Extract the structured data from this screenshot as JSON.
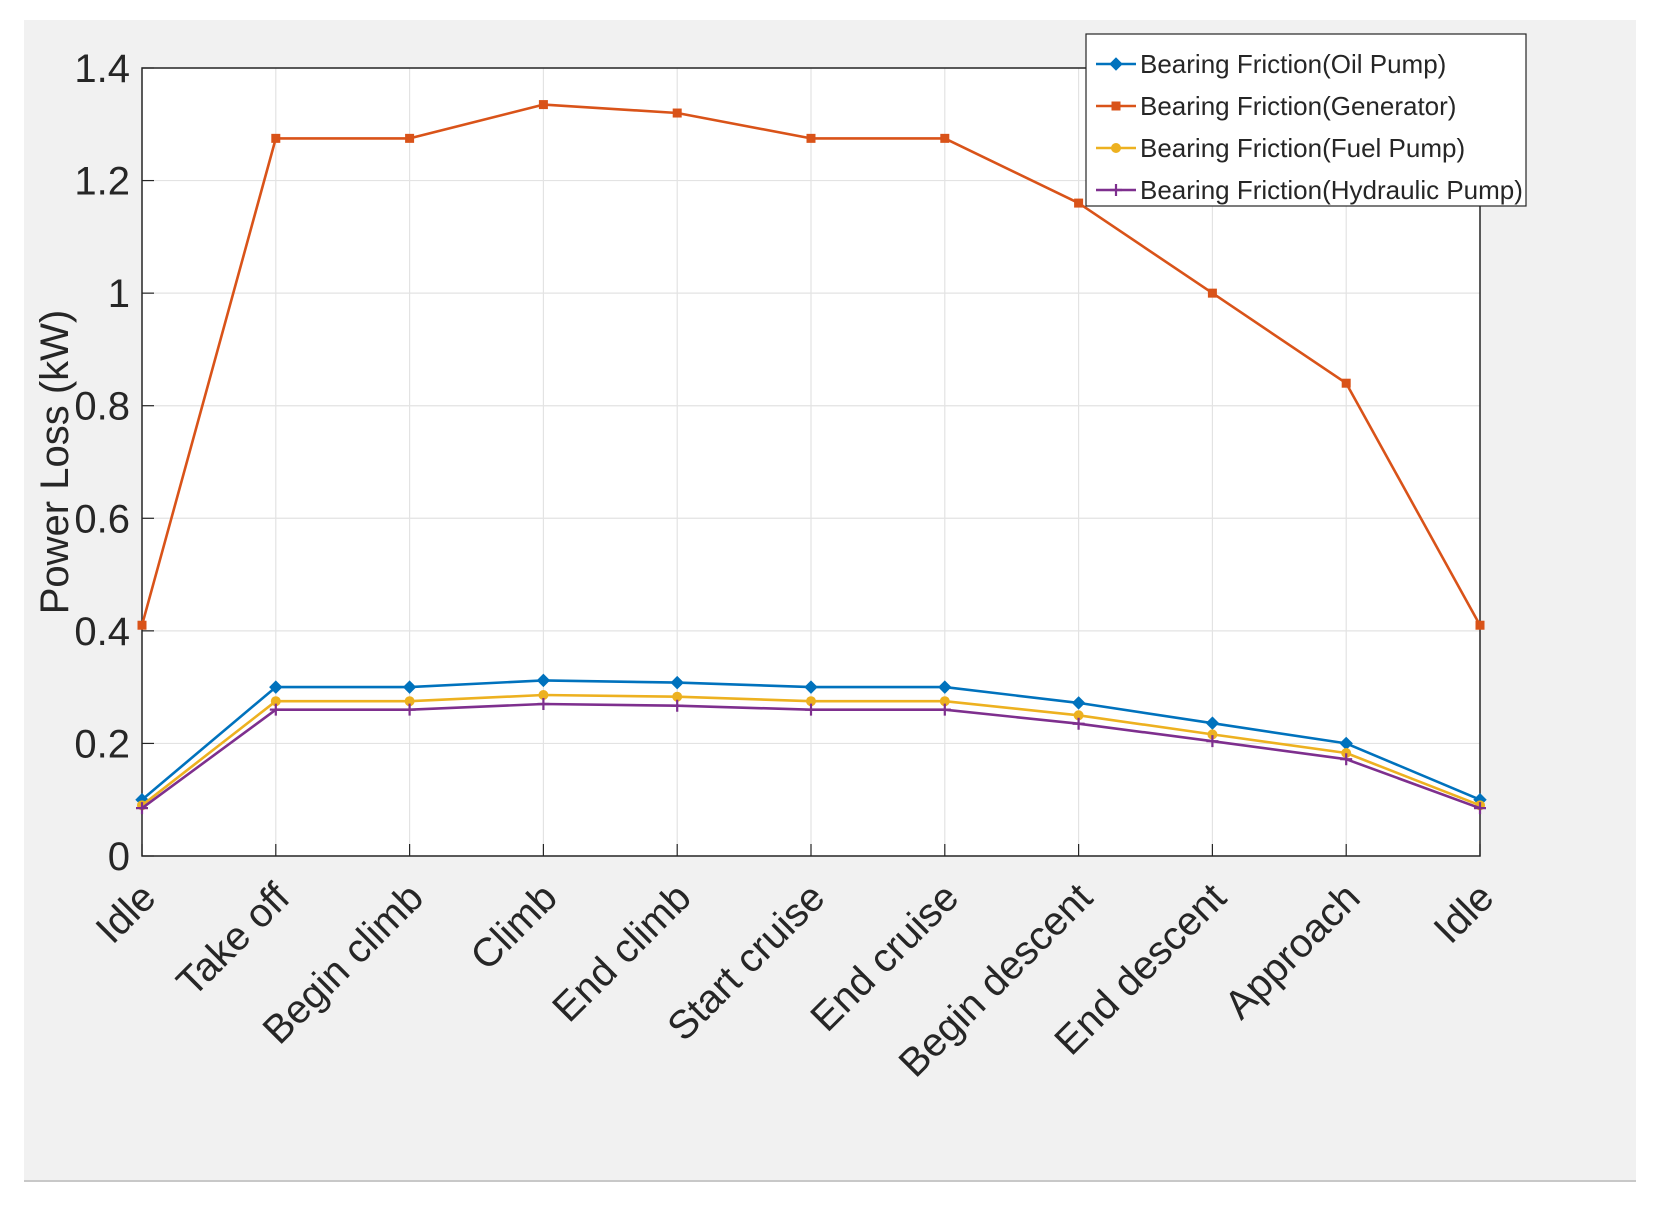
{
  "chart_data": {
    "type": "line",
    "title": "",
    "xlabel": "",
    "ylabel": "Power Loss (kW)",
    "ylim": [
      0,
      1.4
    ],
    "yticks": [
      0,
      0.2,
      0.4,
      0.6,
      0.8,
      1,
      1.2,
      1.4
    ],
    "ytick_labels": [
      "0",
      "0.2",
      "0.4",
      "0.6",
      "0.8",
      "1",
      "1.2",
      "1.4"
    ],
    "grid": true,
    "legend_position": "top-right",
    "categories": [
      "Idle",
      "Take off",
      "Begin climb",
      "Climb",
      "End climb",
      "Start cruise",
      "End cruise",
      "Begin descent",
      "End descent",
      "Approach",
      "Idle"
    ],
    "series": [
      {
        "name": "Bearing Friction(Oil Pump)",
        "color": "#0072bd",
        "marker": "diamond",
        "values": [
          0.1,
          0.3,
          0.3,
          0.312,
          0.308,
          0.3,
          0.3,
          0.272,
          0.236,
          0.2,
          0.1
        ]
      },
      {
        "name": "Bearing Friction(Generator)",
        "color": "#d95319",
        "marker": "square",
        "values": [
          0.41,
          1.275,
          1.275,
          1.335,
          1.32,
          1.275,
          1.275,
          1.16,
          1.0,
          0.84,
          0.41
        ]
      },
      {
        "name": "Bearing Friction(Fuel Pump)",
        "color": "#edb120",
        "marker": "circle",
        "values": [
          0.09,
          0.275,
          0.275,
          0.286,
          0.283,
          0.275,
          0.275,
          0.25,
          0.216,
          0.183,
          0.09
        ]
      },
      {
        "name": "Bearing Friction(Hydraulic Pump)",
        "color": "#7e2f8e",
        "marker": "plus",
        "values": [
          0.085,
          0.26,
          0.26,
          0.27,
          0.267,
          0.26,
          0.26,
          0.235,
          0.204,
          0.172,
          0.085
        ]
      }
    ]
  }
}
